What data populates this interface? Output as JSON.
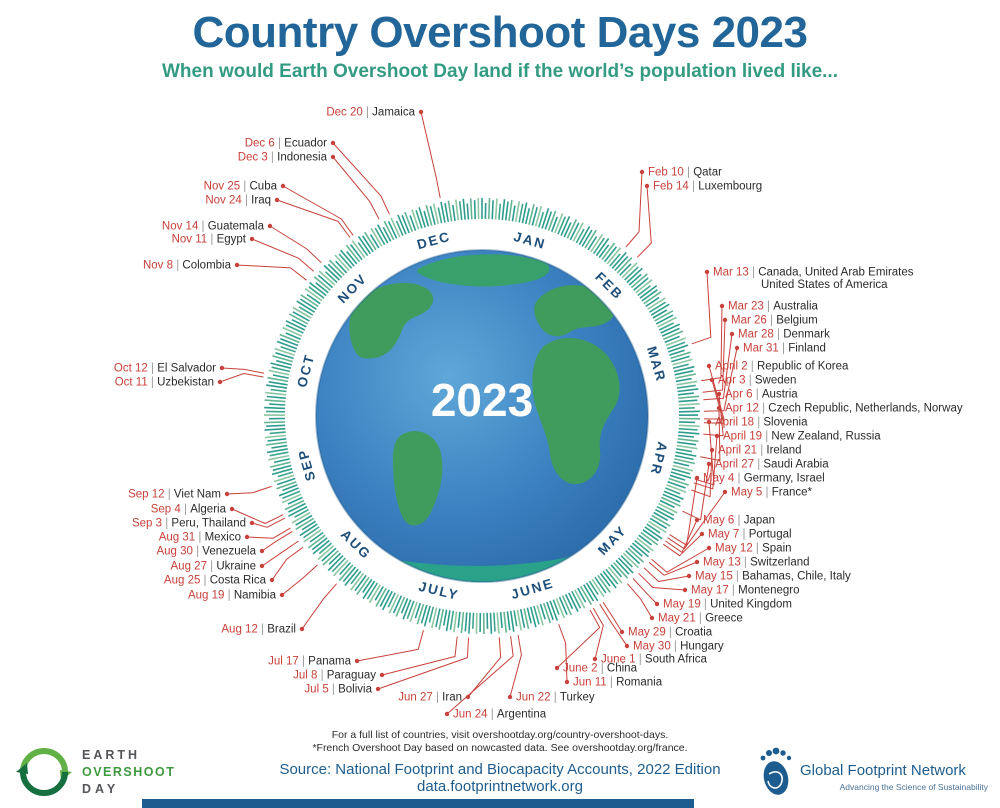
{
  "title": "Country Overshoot Days 2023",
  "subtitle": "When would Earth Overshoot Day land if the world’s population lived like...",
  "chart_data": {
    "type": "radial-calendar",
    "title": "Country Overshoot Days 2023",
    "year": "2023",
    "months": [
      "JAN",
      "FEB",
      "MAR",
      "APR",
      "MAY",
      "JUNE",
      "JULY",
      "AUG",
      "SEP",
      "OCT",
      "NOV",
      "DEC"
    ],
    "entries": [
      {
        "date": "Feb 10",
        "countries": "Qatar"
      },
      {
        "date": "Feb 14",
        "countries": "Luxembourg"
      },
      {
        "date": "Mar 13",
        "countries": "Canada, United Arab Emirates",
        "countries2": "United States of America"
      },
      {
        "date": "Mar 23",
        "countries": "Australia"
      },
      {
        "date": "Mar 26",
        "countries": "Belgium"
      },
      {
        "date": "Mar 28",
        "countries": "Denmark"
      },
      {
        "date": "Mar 31",
        "countries": "Finland"
      },
      {
        "date": "April 2",
        "countries": "Republic of Korea"
      },
      {
        "date": "Apr 3",
        "countries": "Sweden"
      },
      {
        "date": "Apr 6",
        "countries": "Austria"
      },
      {
        "date": "Apr 12",
        "countries": "Czech Republic, Netherlands, Norway"
      },
      {
        "date": "April 18",
        "countries": "Slovenia"
      },
      {
        "date": "April 19",
        "countries": "New Zealand, Russia"
      },
      {
        "date": "April 21",
        "countries": "Ireland"
      },
      {
        "date": "April 27",
        "countries": "Saudi Arabia"
      },
      {
        "date": "May 4",
        "countries": "Germany, Israel"
      },
      {
        "date": "May 5",
        "countries": "France*"
      },
      {
        "date": "May 6",
        "countries": "Japan"
      },
      {
        "date": "May 7",
        "countries": "Portugal"
      },
      {
        "date": "May 12",
        "countries": "Spain"
      },
      {
        "date": "May 13",
        "countries": "Switzerland"
      },
      {
        "date": "May 15",
        "countries": "Bahamas, Chile, Italy"
      },
      {
        "date": "May 17",
        "countries": "Montenegro"
      },
      {
        "date": "May 19",
        "countries": "United Kingdom"
      },
      {
        "date": "May 21",
        "countries": "Greece"
      },
      {
        "date": "May 29",
        "countries": "Croatia"
      },
      {
        "date": "May 30",
        "countries": "Hungary"
      },
      {
        "date": "June 1",
        "countries": "South Africa"
      },
      {
        "date": "June 2",
        "countries": "China"
      },
      {
        "date": "Jun 11",
        "countries": "Romania"
      },
      {
        "date": "Jun 22",
        "countries": "Turkey"
      },
      {
        "date": "Jun 24",
        "countries": "Argentina"
      },
      {
        "date": "Jun 27",
        "countries": "Iran"
      },
      {
        "date": "Jul 5",
        "countries": "Bolivia"
      },
      {
        "date": "Jul 8",
        "countries": "Paraguay"
      },
      {
        "date": "Jul 17",
        "countries": "Panama"
      },
      {
        "date": "Aug 12",
        "countries": "Brazil"
      },
      {
        "date": "Aug 19",
        "countries": "Namibia"
      },
      {
        "date": "Aug 25",
        "countries": "Costa Rica"
      },
      {
        "date": "Aug 27",
        "countries": "Ukraine"
      },
      {
        "date": "Aug 30",
        "countries": "Venezuela"
      },
      {
        "date": "Aug 31",
        "countries": "Mexico"
      },
      {
        "date": "Sep 3",
        "countries": "Peru, Thailand"
      },
      {
        "date": "Sep 4",
        "countries": "Algeria"
      },
      {
        "date": "Sep 12",
        "countries": "Viet Nam"
      },
      {
        "date": "Oct 11",
        "countries": "Uzbekistan"
      },
      {
        "date": "Oct 12",
        "countries": "El Salvador"
      },
      {
        "date": "Nov 8",
        "countries": "Colombia"
      },
      {
        "date": "Nov 11",
        "countries": "Egypt"
      },
      {
        "date": "Nov 14",
        "countries": "Guatemala"
      },
      {
        "date": "Nov 24",
        "countries": "Iraq"
      },
      {
        "date": "Nov 25",
        "countries": "Cuba"
      },
      {
        "date": "Dec 3",
        "countries": "Indonesia"
      },
      {
        "date": "Dec 6",
        "countries": "Ecuador"
      },
      {
        "date": "Dec 20",
        "countries": "Jamaica"
      }
    ]
  },
  "footnotes": {
    "full_list": "For a full list of countries, visit overshootday.org/country-overshoot-days.",
    "france_note": "*French Overshoot Day based on nowcasted data. See overshootday.org/france.",
    "source": "Source: National Footprint and Biocapacity Accounts, 2022 Edition",
    "link": "data.footprintnetwork.org"
  },
  "logos": {
    "earth_overshoot_day": {
      "word1": "EARTH",
      "word2": "OVERSHOOT",
      "word3": "DAY"
    },
    "global_footprint_network": {
      "name": "Global Footprint Network",
      "tagline": "Advancing the Science of Sustainability"
    }
  },
  "colors": {
    "title_blue": "#226598",
    "subtitle_green": "#339b82",
    "month_navy": "#1d4e7a",
    "accent_red": "#c8413a",
    "country_text": "#2b2b2b",
    "footer_blue": "#1d5c8e",
    "globe_ocean": "#3a7fc0",
    "globe_land_green": "#3f9c5c",
    "ticks": [
      "#2d9c8e",
      "#2d9c8e",
      "#63b493",
      "#2d9c8e",
      "#8cc7a2",
      "#3da58f"
    ]
  }
}
